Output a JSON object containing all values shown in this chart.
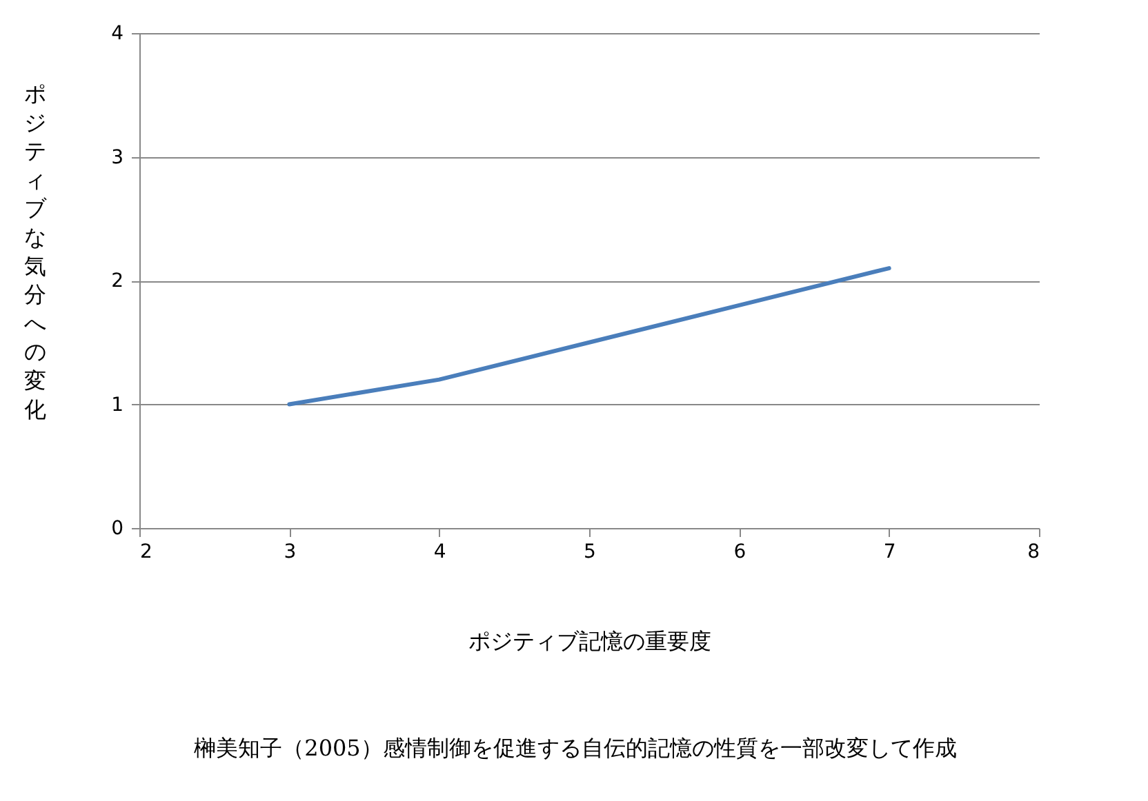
{
  "chart_data": {
    "type": "line",
    "xlabel": "ポジティブ記憶の重要度",
    "ylabel": "ポジティブな気分への変化",
    "annotations": [
      "榊美知子（2005）感情制御を促進する自伝的記憶の性質を一部改変して作成"
    ],
    "x": [
      3,
      4,
      5,
      6,
      7
    ],
    "series": [
      {
        "color": "#4a7ebb",
        "values": [
          1,
          1.2,
          1.5,
          1.8,
          2.1
        ]
      }
    ],
    "xlim": [
      2,
      8
    ],
    "xticks": [
      2,
      3,
      4,
      5,
      6,
      7,
      8
    ],
    "ylim": [
      0,
      4
    ],
    "yticks": [
      0,
      1,
      2,
      3,
      4
    ],
    "grid": "y",
    "marker": "none",
    "line_style": "solid"
  }
}
